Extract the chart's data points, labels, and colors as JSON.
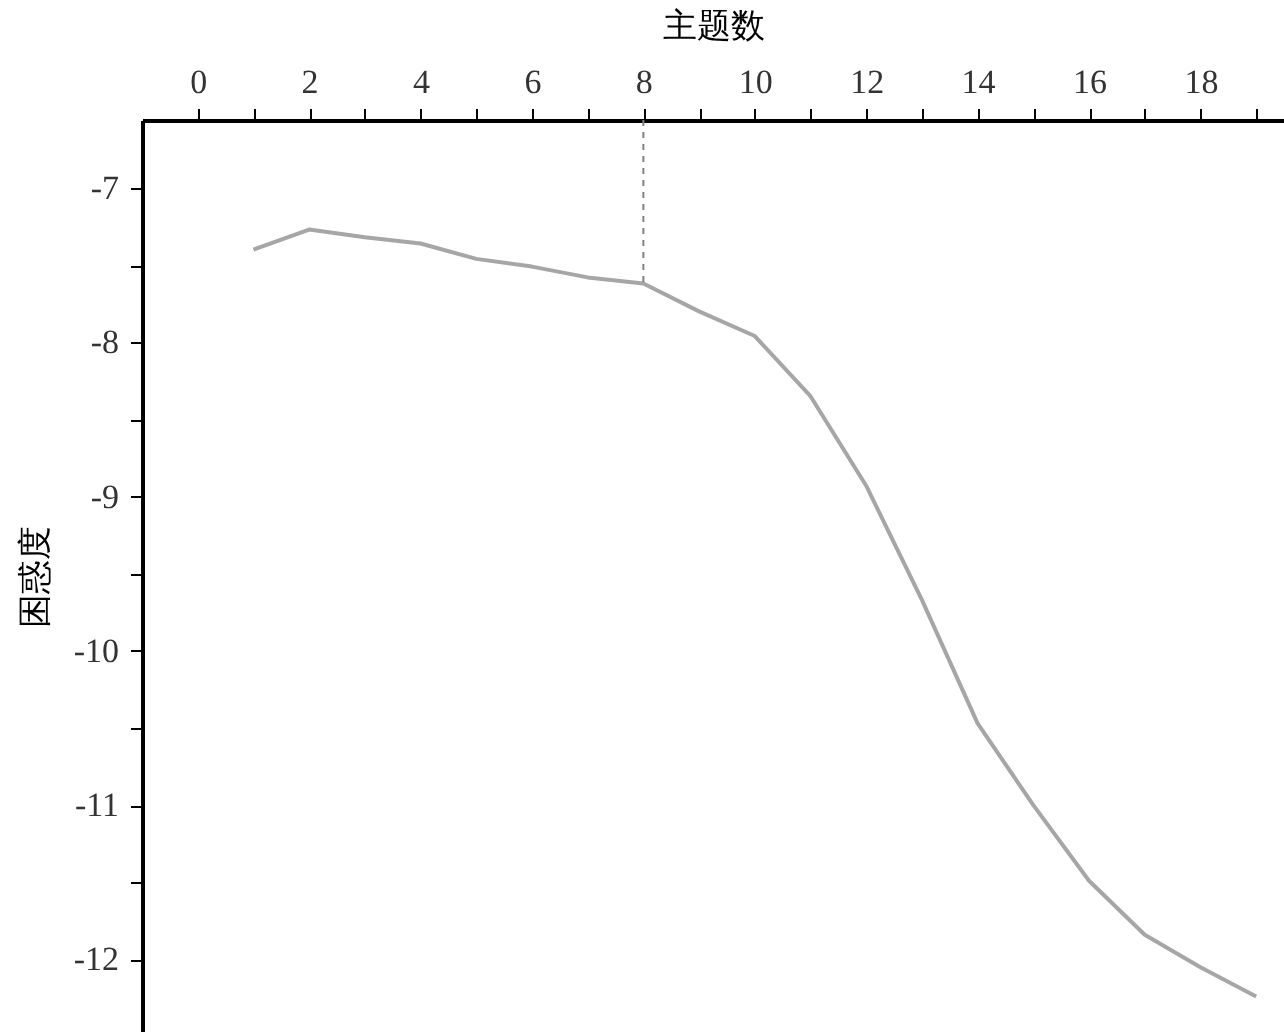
{
  "chart_data": {
    "type": "line",
    "xlabel": "主题数",
    "ylabel": "困惑度",
    "x": [
      1,
      2,
      3,
      4,
      5,
      6,
      7,
      8,
      9,
      10,
      11,
      12,
      13,
      14,
      15,
      16,
      17,
      18,
      19
    ],
    "series": [
      {
        "color": "#a6a6a6",
        "values": [
          -7.4,
          -7.27,
          -7.32,
          -7.36,
          -7.46,
          -7.51,
          -7.58,
          -7.62,
          -7.8,
          -7.96,
          -8.35,
          -8.93,
          -9.67,
          -10.47,
          -11.0,
          -11.49,
          -11.84,
          -12.05,
          -12.24
        ]
      }
    ],
    "xlim": [
      -1,
      19.5
    ],
    "ylim": [
      -12.47,
      -6.56
    ],
    "xticks": [
      0,
      {
        "value": 1,
        "label": null
      },
      2,
      {
        "value": 3,
        "label": null
      },
      4,
      {
        "value": 5,
        "label": null
      },
      6,
      {
        "value": 7,
        "label": null
      },
      8,
      {
        "value": 9,
        "label": null
      },
      10,
      {
        "value": 11,
        "label": null
      },
      12,
      {
        "value": 13,
        "label": null
      },
      14,
      {
        "value": 15,
        "label": null
      },
      16,
      {
        "value": 17,
        "label": null
      },
      18,
      {
        "value": 19,
        "label": null
      }
    ],
    "yticks": [
      -7,
      {
        "value": -7.5,
        "label": null
      },
      -8,
      {
        "value": -8.5,
        "label": null
      },
      -9,
      {
        "value": -9.5,
        "label": null
      },
      -10,
      {
        "value": -10.5,
        "label": null
      },
      -11,
      {
        "value": -11.5,
        "label": null
      },
      -12
    ],
    "ref_lines": [
      {
        "axis": "x",
        "value": 8,
        "color": "#808080",
        "line_style": "dashed"
      }
    ],
    "grid": false,
    "marker": "none",
    "line_style": "solid"
  }
}
